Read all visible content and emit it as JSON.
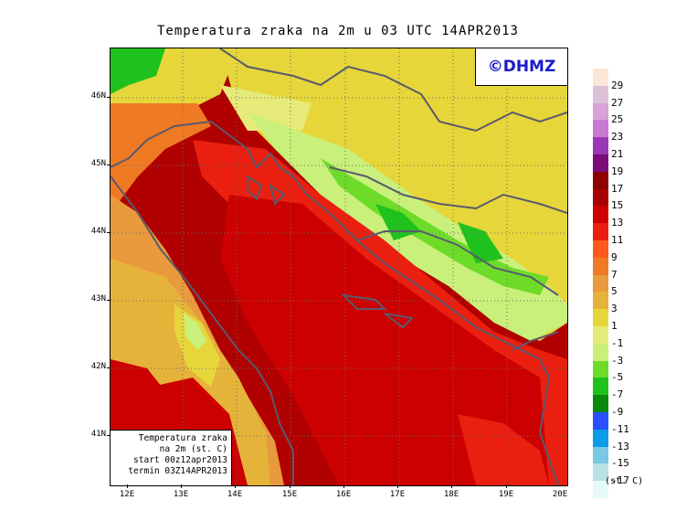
{
  "title": "Temperatura zraka na 2m u 03 UTC 14APR2013",
  "credit": "©DHMZ",
  "info_box": {
    "line1": "Temperatura zraka",
    "line2": "na 2m (st. C)",
    "line3": "start 00z12apr2013",
    "line4": "termin 03Z14APR2013"
  },
  "latitude_labels": [
    "46N",
    "45N",
    "44N",
    "43N",
    "42N",
    "41N"
  ],
  "longitude_labels": [
    "12E",
    "13E",
    "14E",
    "15E",
    "16E",
    "17E",
    "18E",
    "19E",
    "20E"
  ],
  "legend": {
    "unit": "(st. C)",
    "labels": [
      "29",
      "27",
      "25",
      "23",
      "21",
      "19",
      "17",
      "15",
      "13",
      "11",
      "9",
      "7",
      "5",
      "3",
      "1",
      "-1",
      "-3",
      "-5",
      "-7",
      "-9",
      "-11",
      "-13",
      "-15",
      "-17"
    ],
    "colors": [
      "#fce7d8",
      "#dcc2d8",
      "#d8a3d8",
      "#c979d2",
      "#9a37b4",
      "#7a0d7a",
      "#8c0000",
      "#a80000",
      "#cc0000",
      "#ea1f0f",
      "#ff5a1a",
      "#f07a23",
      "#e89a3c",
      "#e6b33a",
      "#e6d63a",
      "#e6ea79",
      "#c9f07a",
      "#6edb28",
      "#1fc21c",
      "#0a8a0a",
      "#2a4fff",
      "#0a9ce6",
      "#78c8e6",
      "#b8e2e6",
      "#e6fafa"
    ]
  },
  "colors": {
    "sea_warm": "#cc0a0a",
    "coast_mild": "#ea1f0f",
    "land_warm": "#e89a3c",
    "land_mild": "#e6d63a",
    "land_cold": "#6edb28",
    "credit_text": "#1a1acc"
  }
}
